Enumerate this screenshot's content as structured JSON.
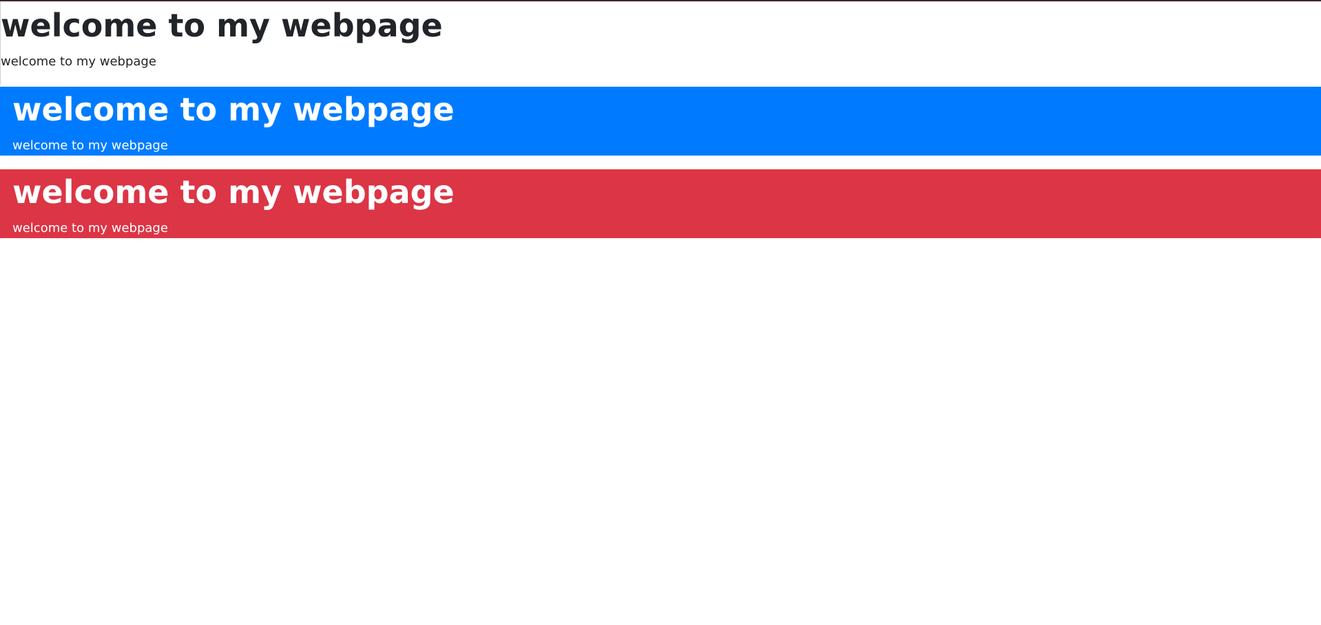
{
  "sections": [
    {
      "heading": "welcome to my webpage",
      "text": "welcome to my webpage"
    },
    {
      "heading": "welcome to my webpage",
      "text": "welcome to my webpage"
    },
    {
      "heading": "welcome to my webpage",
      "text": "welcome to my webpage"
    }
  ],
  "colors": {
    "text_dark": "#212529",
    "blue_banner": "#007bff",
    "red_banner": "#dc3545",
    "white_text": "#ffffff"
  }
}
